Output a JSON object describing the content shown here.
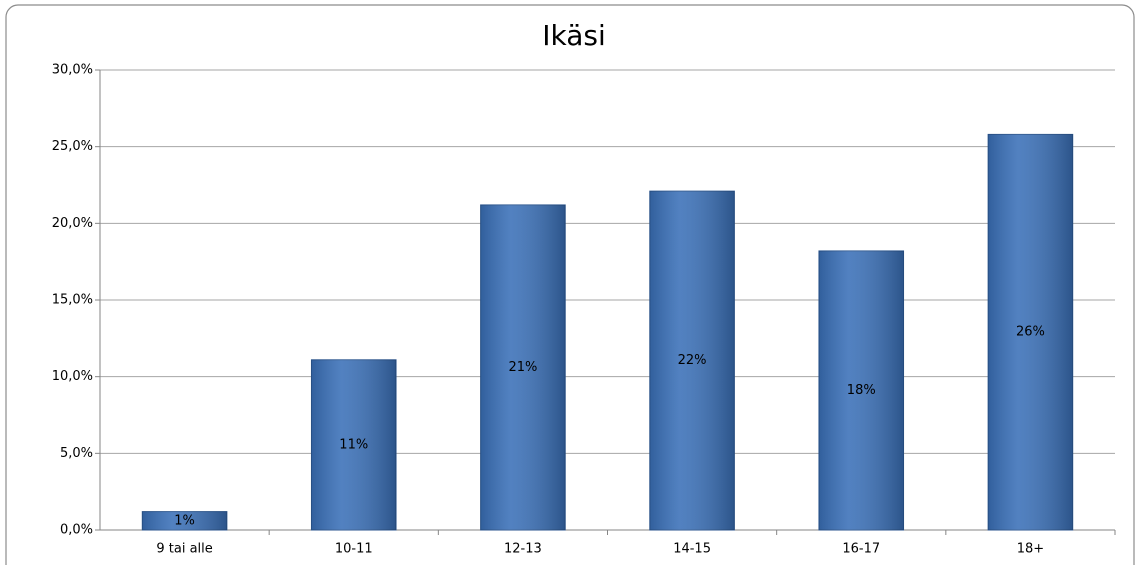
{
  "chart_data": {
    "type": "bar",
    "title": "Ikäsi",
    "categories": [
      "9 tai alle",
      "10-11",
      "12-13",
      "14-15",
      "16-17",
      "18+"
    ],
    "values": [
      1.2,
      11.1,
      21.2,
      22.1,
      18.2,
      25.8
    ],
    "value_labels": [
      "1%",
      "11%",
      "21%",
      "22%",
      "18%",
      "26%"
    ],
    "color": "#3a70b8",
    "ylim": [
      0,
      30
    ],
    "yticks": [
      {
        "value": 0,
        "label": "0,0%"
      },
      {
        "value": 5,
        "label": "5,0%"
      },
      {
        "value": 10,
        "label": "10,0%"
      },
      {
        "value": 15,
        "label": "15,0%"
      },
      {
        "value": 20,
        "label": "20,0%"
      },
      {
        "value": 25,
        "label": "25,0%"
      },
      {
        "value": 30,
        "label": "30,0%"
      }
    ],
    "grid": true
  }
}
